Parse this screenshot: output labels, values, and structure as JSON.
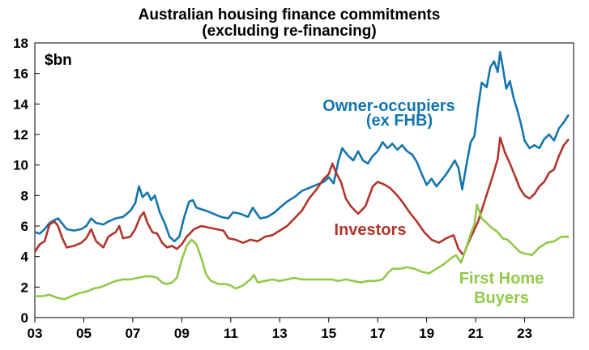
{
  "chart_data": {
    "type": "line",
    "title": "Australian housing finance commitments",
    "subtitle": "(excluding re-financing)",
    "ylabel": "$bn",
    "ylim": [
      0,
      18
    ],
    "yticks": [
      0,
      2,
      4,
      6,
      8,
      10,
      12,
      14,
      16,
      18
    ],
    "xlim": [
      2003,
      2025
    ],
    "xticks": [
      {
        "label": "03",
        "x": 2003
      },
      {
        "label": "05",
        "x": 2005
      },
      {
        "label": "07",
        "x": 2007
      },
      {
        "label": "09",
        "x": 2009
      },
      {
        "label": "11",
        "x": 2011
      },
      {
        "label": "13",
        "x": 2013
      },
      {
        "label": "15",
        "x": 2015
      },
      {
        "label": "17",
        "x": 2017
      },
      {
        "label": "19",
        "x": 2019
      },
      {
        "label": "21",
        "x": 2021
      },
      {
        "label": "23",
        "x": 2023
      }
    ],
    "grid": false,
    "series": [
      {
        "name": "Owner-occupiers (ex FHB)",
        "label_lines": [
          "Owner-occupiers",
          "(ex FHB)"
        ],
        "color": "#1475AE",
        "points": [
          [
            2003.0,
            5.6
          ],
          [
            2003.2,
            5.5
          ],
          [
            2003.4,
            5.8
          ],
          [
            2003.6,
            6.2
          ],
          [
            2003.8,
            6.4
          ],
          [
            2003.95,
            6.5
          ],
          [
            2004.1,
            6.2
          ],
          [
            2004.3,
            5.8
          ],
          [
            2004.6,
            5.7
          ],
          [
            2004.9,
            5.8
          ],
          [
            2005.1,
            6.0
          ],
          [
            2005.3,
            6.5
          ],
          [
            2005.5,
            6.2
          ],
          [
            2005.8,
            6.1
          ],
          [
            2006.0,
            6.3
          ],
          [
            2006.3,
            6.5
          ],
          [
            2006.6,
            6.6
          ],
          [
            2006.9,
            7.0
          ],
          [
            2007.1,
            7.5
          ],
          [
            2007.25,
            8.6
          ],
          [
            2007.4,
            7.9
          ],
          [
            2007.6,
            8.2
          ],
          [
            2007.75,
            7.7
          ],
          [
            2007.9,
            8.0
          ],
          [
            2008.1,
            6.9
          ],
          [
            2008.3,
            6.2
          ],
          [
            2008.5,
            5.3
          ],
          [
            2008.7,
            5.0
          ],
          [
            2008.9,
            5.3
          ],
          [
            2009.1,
            6.6
          ],
          [
            2009.3,
            7.6
          ],
          [
            2009.45,
            7.7
          ],
          [
            2009.6,
            7.2
          ],
          [
            2009.8,
            7.1
          ],
          [
            2010.0,
            7.0
          ],
          [
            2010.3,
            6.8
          ],
          [
            2010.6,
            6.6
          ],
          [
            2010.9,
            6.5
          ],
          [
            2011.1,
            6.9
          ],
          [
            2011.4,
            6.8
          ],
          [
            2011.7,
            6.6
          ],
          [
            2011.9,
            7.2
          ],
          [
            2012.2,
            6.5
          ],
          [
            2012.5,
            6.6
          ],
          [
            2012.8,
            6.9
          ],
          [
            2013.0,
            7.2
          ],
          [
            2013.3,
            7.6
          ],
          [
            2013.6,
            7.9
          ],
          [
            2013.9,
            8.3
          ],
          [
            2014.2,
            8.5
          ],
          [
            2014.5,
            8.7
          ],
          [
            2014.8,
            8.9
          ],
          [
            2015.0,
            9.2
          ],
          [
            2015.2,
            8.8
          ],
          [
            2015.4,
            10.3
          ],
          [
            2015.55,
            11.1
          ],
          [
            2015.8,
            10.6
          ],
          [
            2016.0,
            10.3
          ],
          [
            2016.2,
            10.9
          ],
          [
            2016.4,
            10.3
          ],
          [
            2016.6,
            10.1
          ],
          [
            2016.8,
            10.6
          ],
          [
            2017.0,
            10.9
          ],
          [
            2017.2,
            11.5
          ],
          [
            2017.4,
            11.1
          ],
          [
            2017.6,
            11.4
          ],
          [
            2017.8,
            11.0
          ],
          [
            2018.0,
            11.3
          ],
          [
            2018.2,
            10.9
          ],
          [
            2018.4,
            10.7
          ],
          [
            2018.6,
            10.2
          ],
          [
            2018.8,
            9.4
          ],
          [
            2019.0,
            8.7
          ],
          [
            2019.2,
            9.1
          ],
          [
            2019.4,
            8.6
          ],
          [
            2019.6,
            9.0
          ],
          [
            2019.8,
            9.4
          ],
          [
            2020.0,
            9.9
          ],
          [
            2020.15,
            10.3
          ],
          [
            2020.3,
            9.8
          ],
          [
            2020.45,
            8.4
          ],
          [
            2020.6,
            9.8
          ],
          [
            2020.8,
            11.5
          ],
          [
            2020.95,
            11.9
          ],
          [
            2021.1,
            13.8
          ],
          [
            2021.25,
            15.4
          ],
          [
            2021.45,
            15.1
          ],
          [
            2021.6,
            16.4
          ],
          [
            2021.75,
            16.8
          ],
          [
            2021.9,
            16.1
          ],
          [
            2022.0,
            17.4
          ],
          [
            2022.1,
            16.5
          ],
          [
            2022.25,
            15.0
          ],
          [
            2022.4,
            15.5
          ],
          [
            2022.55,
            14.4
          ],
          [
            2022.7,
            13.6
          ],
          [
            2022.85,
            12.7
          ],
          [
            2023.0,
            11.6
          ],
          [
            2023.2,
            11.1
          ],
          [
            2023.4,
            11.3
          ],
          [
            2023.6,
            11.1
          ],
          [
            2023.8,
            11.7
          ],
          [
            2024.0,
            12.0
          ],
          [
            2024.2,
            11.6
          ],
          [
            2024.4,
            12.4
          ],
          [
            2024.6,
            12.8
          ],
          [
            2024.8,
            13.3
          ]
        ]
      },
      {
        "name": "Investors",
        "color": "#B2352B",
        "points": [
          [
            2003.0,
            4.3
          ],
          [
            2003.2,
            4.8
          ],
          [
            2003.4,
            5.0
          ],
          [
            2003.6,
            6.1
          ],
          [
            2003.8,
            6.3
          ],
          [
            2003.95,
            6.0
          ],
          [
            2004.1,
            5.3
          ],
          [
            2004.3,
            4.6
          ],
          [
            2004.6,
            4.7
          ],
          [
            2004.9,
            4.9
          ],
          [
            2005.1,
            5.2
          ],
          [
            2005.3,
            5.8
          ],
          [
            2005.5,
            5.0
          ],
          [
            2005.8,
            4.6
          ],
          [
            2006.0,
            5.3
          ],
          [
            2006.3,
            5.6
          ],
          [
            2006.45,
            6.0
          ],
          [
            2006.6,
            5.2
          ],
          [
            2006.9,
            5.3
          ],
          [
            2007.1,
            5.8
          ],
          [
            2007.3,
            6.6
          ],
          [
            2007.45,
            6.9
          ],
          [
            2007.6,
            6.2
          ],
          [
            2007.8,
            5.6
          ],
          [
            2008.0,
            5.5
          ],
          [
            2008.2,
            4.9
          ],
          [
            2008.4,
            4.6
          ],
          [
            2008.6,
            4.7
          ],
          [
            2008.8,
            4.5
          ],
          [
            2009.0,
            4.8
          ],
          [
            2009.2,
            5.3
          ],
          [
            2009.5,
            5.8
          ],
          [
            2009.8,
            6.0
          ],
          [
            2010.1,
            5.9
          ],
          [
            2010.4,
            5.8
          ],
          [
            2010.7,
            5.7
          ],
          [
            2010.9,
            5.2
          ],
          [
            2011.2,
            5.1
          ],
          [
            2011.5,
            4.9
          ],
          [
            2011.8,
            5.1
          ],
          [
            2012.1,
            5.0
          ],
          [
            2012.4,
            5.3
          ],
          [
            2012.7,
            5.4
          ],
          [
            2013.0,
            5.7
          ],
          [
            2013.3,
            6.0
          ],
          [
            2013.6,
            6.5
          ],
          [
            2013.9,
            7.0
          ],
          [
            2014.2,
            7.8
          ],
          [
            2014.5,
            8.4
          ],
          [
            2014.8,
            9.1
          ],
          [
            2015.0,
            9.4
          ],
          [
            2015.15,
            10.1
          ],
          [
            2015.3,
            9.5
          ],
          [
            2015.5,
            8.9
          ],
          [
            2015.7,
            7.8
          ],
          [
            2015.9,
            7.3
          ],
          [
            2016.2,
            6.8
          ],
          [
            2016.5,
            7.3
          ],
          [
            2016.8,
            8.6
          ],
          [
            2017.0,
            8.9
          ],
          [
            2017.3,
            8.7
          ],
          [
            2017.5,
            8.5
          ],
          [
            2017.8,
            8.0
          ],
          [
            2018.0,
            7.6
          ],
          [
            2018.3,
            6.9
          ],
          [
            2018.6,
            6.3
          ],
          [
            2018.9,
            5.6
          ],
          [
            2019.2,
            5.1
          ],
          [
            2019.5,
            4.9
          ],
          [
            2019.8,
            5.2
          ],
          [
            2020.1,
            5.4
          ],
          [
            2020.3,
            4.5
          ],
          [
            2020.5,
            4.1
          ],
          [
            2020.7,
            4.9
          ],
          [
            2020.9,
            5.6
          ],
          [
            2021.1,
            6.3
          ],
          [
            2021.3,
            7.3
          ],
          [
            2021.5,
            8.3
          ],
          [
            2021.7,
            9.3
          ],
          [
            2021.9,
            10.4
          ],
          [
            2022.0,
            11.8
          ],
          [
            2022.2,
            10.8
          ],
          [
            2022.4,
            10.1
          ],
          [
            2022.6,
            9.3
          ],
          [
            2022.8,
            8.5
          ],
          [
            2023.0,
            8.0
          ],
          [
            2023.2,
            7.8
          ],
          [
            2023.4,
            8.1
          ],
          [
            2023.6,
            8.6
          ],
          [
            2023.8,
            8.9
          ],
          [
            2024.0,
            9.5
          ],
          [
            2024.2,
            9.7
          ],
          [
            2024.4,
            10.6
          ],
          [
            2024.6,
            11.3
          ],
          [
            2024.8,
            11.7
          ]
        ]
      },
      {
        "name": "First Home Buyers",
        "label_lines": [
          "First Home",
          "Buyers"
        ],
        "color": "#92C94B",
        "points": [
          [
            2003.0,
            1.4
          ],
          [
            2003.3,
            1.4
          ],
          [
            2003.6,
            1.5
          ],
          [
            2003.9,
            1.3
          ],
          [
            2004.2,
            1.2
          ],
          [
            2004.5,
            1.4
          ],
          [
            2004.8,
            1.6
          ],
          [
            2005.1,
            1.7
          ],
          [
            2005.4,
            1.9
          ],
          [
            2005.7,
            2.0
          ],
          [
            2006.0,
            2.2
          ],
          [
            2006.3,
            2.4
          ],
          [
            2006.6,
            2.5
          ],
          [
            2006.9,
            2.5
          ],
          [
            2007.2,
            2.6
          ],
          [
            2007.5,
            2.7
          ],
          [
            2007.8,
            2.7
          ],
          [
            2008.0,
            2.6
          ],
          [
            2008.2,
            2.3
          ],
          [
            2008.4,
            2.2
          ],
          [
            2008.6,
            2.3
          ],
          [
            2008.8,
            2.6
          ],
          [
            2009.0,
            3.8
          ],
          [
            2009.2,
            4.7
          ],
          [
            2009.4,
            5.1
          ],
          [
            2009.6,
            4.8
          ],
          [
            2009.8,
            3.9
          ],
          [
            2010.0,
            2.8
          ],
          [
            2010.2,
            2.4
          ],
          [
            2010.5,
            2.2
          ],
          [
            2010.8,
            2.2
          ],
          [
            2011.0,
            2.1
          ],
          [
            2011.2,
            1.9
          ],
          [
            2011.5,
            2.1
          ],
          [
            2011.8,
            2.5
          ],
          [
            2011.95,
            2.8
          ],
          [
            2012.1,
            2.3
          ],
          [
            2012.4,
            2.4
          ],
          [
            2012.7,
            2.5
          ],
          [
            2013.0,
            2.4
          ],
          [
            2013.3,
            2.5
          ],
          [
            2013.6,
            2.6
          ],
          [
            2013.9,
            2.5
          ],
          [
            2014.2,
            2.5
          ],
          [
            2014.5,
            2.5
          ],
          [
            2014.8,
            2.5
          ],
          [
            2015.1,
            2.5
          ],
          [
            2015.4,
            2.4
          ],
          [
            2015.7,
            2.5
          ],
          [
            2016.0,
            2.4
          ],
          [
            2016.3,
            2.3
          ],
          [
            2016.6,
            2.4
          ],
          [
            2016.9,
            2.4
          ],
          [
            2017.2,
            2.5
          ],
          [
            2017.4,
            2.9
          ],
          [
            2017.6,
            3.2
          ],
          [
            2017.9,
            3.2
          ],
          [
            2018.2,
            3.3
          ],
          [
            2018.5,
            3.2
          ],
          [
            2018.8,
            3.0
          ],
          [
            2019.1,
            2.9
          ],
          [
            2019.4,
            3.2
          ],
          [
            2019.7,
            3.5
          ],
          [
            2020.0,
            3.9
          ],
          [
            2020.2,
            4.1
          ],
          [
            2020.4,
            3.6
          ],
          [
            2020.6,
            4.5
          ],
          [
            2020.8,
            5.5
          ],
          [
            2020.95,
            6.1
          ],
          [
            2021.05,
            7.4
          ],
          [
            2021.25,
            6.5
          ],
          [
            2021.45,
            6.2
          ],
          [
            2021.65,
            5.9
          ],
          [
            2021.9,
            5.6
          ],
          [
            2022.1,
            5.2
          ],
          [
            2022.3,
            5.1
          ],
          [
            2022.5,
            4.8
          ],
          [
            2022.8,
            4.3
          ],
          [
            2023.0,
            4.2
          ],
          [
            2023.3,
            4.1
          ],
          [
            2023.6,
            4.6
          ],
          [
            2023.9,
            4.9
          ],
          [
            2024.2,
            5.0
          ],
          [
            2024.5,
            5.3
          ],
          [
            2024.8,
            5.3
          ]
        ]
      }
    ]
  }
}
